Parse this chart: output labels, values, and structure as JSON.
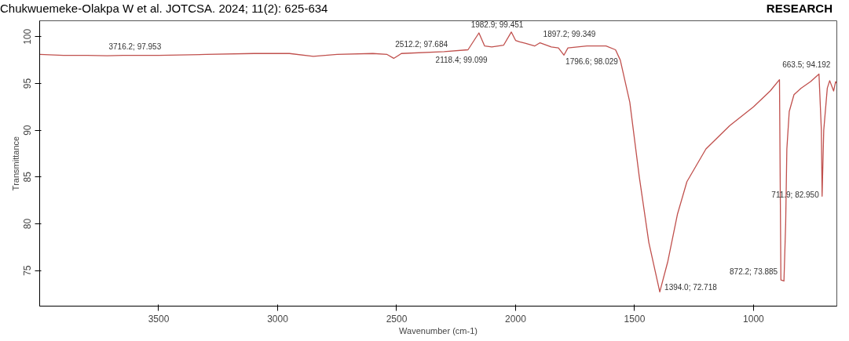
{
  "chart_data": {
    "type": "line",
    "xlabel": "Wavenumber (cm-1)",
    "ylabel": "Transmittance",
    "x": [
      4000,
      3900,
      3800,
      3716.2,
      3650,
      3500,
      3300,
      3100,
      2950,
      2850,
      2750,
      2600,
      2540,
      2512.2,
      2480,
      2300,
      2200,
      2154,
      2130,
      2100,
      2050,
      2018,
      2000,
      1982.9,
      1960,
      1920,
      1897.2,
      1850,
      1820,
      1796.6,
      1780,
      1700,
      1620,
      1580,
      1560,
      1520,
      1480,
      1440,
      1394,
      1360,
      1320,
      1280,
      1200,
      1100,
      1000,
      930,
      891,
      885,
      872.2,
      865,
      860,
      850,
      830,
      800,
      760,
      725,
      715,
      711.9,
      705,
      690,
      680,
      663.5,
      655,
      650
    ],
    "series": [
      {
        "color": "#c0504d",
        "values": [
          98.1,
          98.0,
          98.0,
          97.953,
          98.0,
          98.0,
          98.1,
          98.2,
          98.2,
          97.9,
          98.1,
          98.2,
          98.1,
          97.684,
          98.2,
          98.4,
          98.6,
          100.4,
          99.0,
          98.9,
          99.1,
          100.5,
          99.6,
          99.451,
          99.3,
          99.0,
          99.349,
          98.9,
          98.8,
          98.029,
          98.8,
          99.0,
          99.0,
          98.6,
          97.5,
          93.0,
          85.0,
          78.0,
          72.718,
          76.0,
          81.0,
          84.5,
          88.0,
          90.5,
          92.5,
          94.2,
          95.4,
          74.0,
          73.885,
          80.0,
          88.0,
          92.0,
          93.8,
          94.5,
          95.2,
          96.0,
          90.0,
          82.95,
          90.0,
          94.5,
          95.3,
          94.192,
          95.2,
          95.0
        ]
      }
    ],
    "xlim": [
      4000,
      650
    ],
    "ylim": [
      71.2,
      101.7
    ],
    "xticks": [
      3500,
      3000,
      2500,
      2000,
      1500,
      1000
    ],
    "yticks": [
      75,
      80,
      85,
      90,
      95,
      100
    ],
    "grid": false,
    "marker": "none",
    "line_style": "solid",
    "annotations": [
      {
        "text": "3716.2; 97.953",
        "x": 3716.2,
        "y": 97.953
      },
      {
        "text": "2512.2; 97.684",
        "x": 2512.2,
        "y": 97.684
      },
      {
        "text": "1982.9; 99.451",
        "x": 1982.9,
        "y": 99.451
      },
      {
        "text": "2118.4; 99.099",
        "x": 2118.4,
        "y": 99.099
      },
      {
        "text": "1897.2; 99.349",
        "x": 1897.2,
        "y": 99.349
      },
      {
        "text": "1796.6; 98.029",
        "x": 1796.6,
        "y": 98.029
      },
      {
        "text": "663.5; 94.192",
        "x": 663.5,
        "y": 94.192
      },
      {
        "text": "711.9; 82.950",
        "x": 711.9,
        "y": 82.95
      },
      {
        "text": "872.2; 73.885",
        "x": 872.2,
        "y": 73.885
      },
      {
        "text": "1394.0; 72.718",
        "x": 1394.0,
        "y": 72.718
      },
      "Chukwuemeke-Olakpa W et al. JOTCSA. 2024; 11(2): 625-634",
      "RESEARCH"
    ]
  }
}
